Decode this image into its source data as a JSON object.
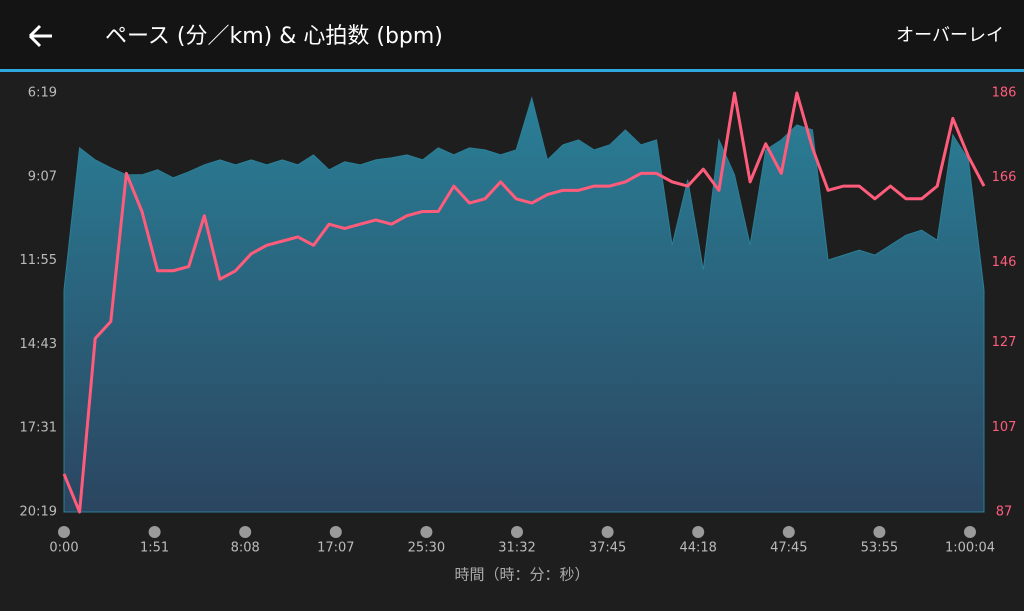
{
  "header": {
    "title": "ペース (分／km) & 心拍数 (bpm)",
    "action": "オーバーレイ"
  },
  "chart_data": {
    "type": "combo",
    "x_label": "時間（時：分：秒）",
    "xtick_labels": [
      "0:00",
      "1:51",
      "8:08",
      "17:07",
      "25:30",
      "31:32",
      "37:45",
      "44:18",
      "47:45",
      "53:55",
      "1:00:04"
    ],
    "ylim": [
      1219,
      379
    ],
    "yticks": [
      {
        "value": 379,
        "label": "6:19"
      },
      {
        "value": 547,
        "label": "9:07"
      },
      {
        "value": 715,
        "label": "11:55"
      },
      {
        "value": 883,
        "label": "14:43"
      },
      {
        "value": 1051,
        "label": "17:31"
      },
      {
        "value": 1219,
        "label": "20:19"
      }
    ],
    "y2lim": [
      87,
      186
    ],
    "y2ticks": [
      87,
      107,
      127,
      146,
      166,
      186
    ],
    "series": [
      {
        "type": "area",
        "color": "#2b7f96",
        "values": [
          774,
          489,
          513,
          529,
          543,
          543,
          533,
          549,
          537,
          523,
          513,
          523,
          513,
          523,
          513,
          523,
          503,
          533,
          517,
          523,
          513,
          509,
          503,
          513,
          489,
          503,
          489,
          493,
          503,
          493,
          389,
          513,
          483,
          473,
          493,
          483,
          453,
          483,
          473,
          684,
          553,
          734,
          473,
          543,
          684,
          493,
          473,
          443,
          453,
          714,
          704,
          694,
          704,
          684,
          664,
          654,
          674,
          463,
          513,
          774
        ]
      },
      {
        "type": "line",
        "axis": "y2",
        "color": "#ff5c7c",
        "values": [
          96,
          87,
          128,
          132,
          167,
          158,
          144,
          144,
          145,
          157,
          142,
          144,
          148,
          150,
          151,
          152,
          150,
          155,
          154,
          155,
          156,
          155,
          157,
          158,
          158,
          164,
          160,
          161,
          165,
          161,
          160,
          162,
          163,
          163,
          164,
          164,
          165,
          167,
          167,
          165,
          164,
          168,
          163,
          186,
          165,
          174,
          167,
          186,
          173,
          163,
          164,
          164,
          161,
          164,
          161,
          161,
          164,
          180,
          171,
          164
        ]
      }
    ]
  }
}
